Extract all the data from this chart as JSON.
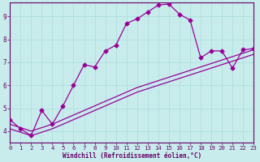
{
  "xlabel": "Windchill (Refroidissement éolien,°C)",
  "background_color": "#c8ecec",
  "line_color": "#990099",
  "grid_color": "#aadddd",
  "axis_color": "#660066",
  "text_color": "#660066",
  "xlim": [
    0,
    23
  ],
  "ylim": [
    3.5,
    9.6
  ],
  "xticks": [
    0,
    1,
    2,
    3,
    4,
    5,
    6,
    7,
    8,
    9,
    10,
    11,
    12,
    13,
    14,
    15,
    16,
    17,
    18,
    19,
    20,
    21,
    22,
    23
  ],
  "yticks": [
    4,
    5,
    6,
    7,
    8,
    9
  ],
  "y_main": [
    4.5,
    4.1,
    3.8,
    4.9,
    4.3,
    5.1,
    6.0,
    6.9,
    6.8,
    7.5,
    7.75,
    8.7,
    8.9,
    9.2,
    9.5,
    9.55,
    9.1,
    8.85,
    7.2,
    7.5,
    7.5,
    6.75,
    7.55,
    7.6
  ],
  "y_trend1": [
    4.3,
    4.15,
    4.0,
    4.15,
    4.3,
    4.5,
    4.7,
    4.9,
    5.1,
    5.3,
    5.5,
    5.7,
    5.9,
    6.05,
    6.2,
    6.35,
    6.5,
    6.65,
    6.8,
    6.95,
    7.1,
    7.25,
    7.4,
    7.55
  ],
  "y_trend2": [
    4.1,
    3.95,
    3.8,
    3.95,
    4.1,
    4.3,
    4.5,
    4.7,
    4.9,
    5.1,
    5.3,
    5.5,
    5.7,
    5.85,
    6.0,
    6.15,
    6.3,
    6.45,
    6.6,
    6.75,
    6.9,
    7.05,
    7.2,
    7.35
  ],
  "marker_size": 2.5,
  "line_width": 0.9
}
